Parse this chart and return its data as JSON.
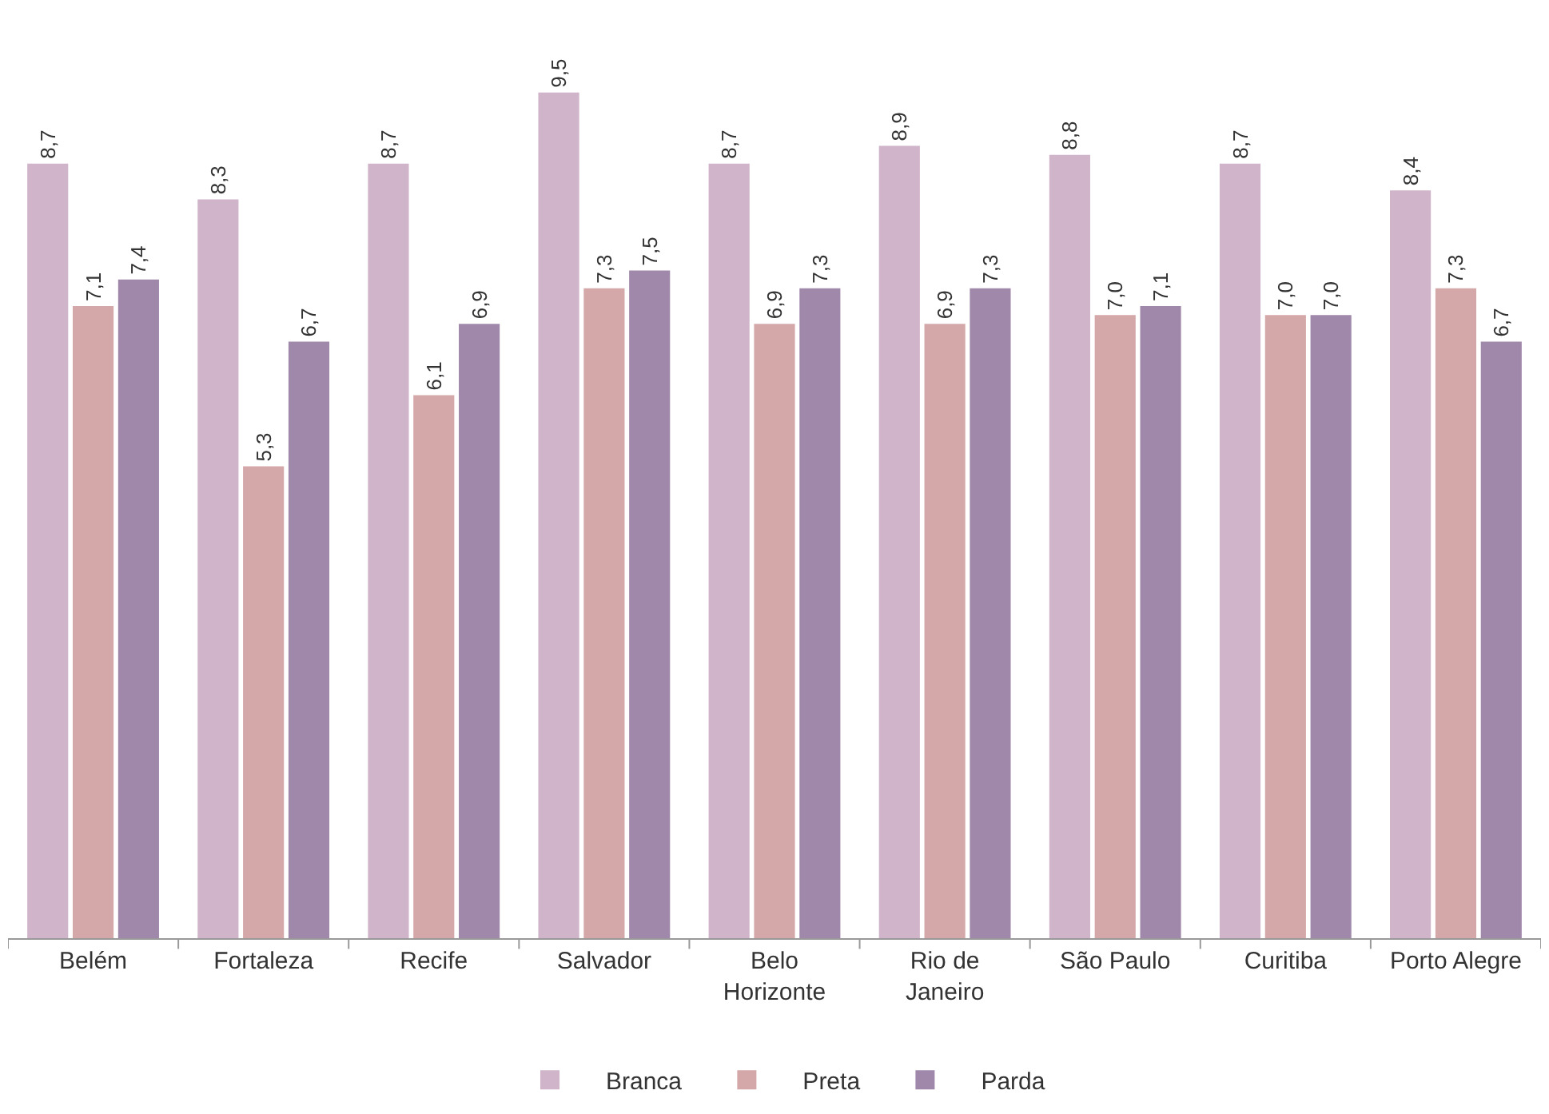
{
  "chart_data": {
    "type": "bar",
    "categories": [
      "Belém",
      "Fortaleza",
      "Recife",
      "Salvador",
      "Belo\nHorizonte",
      "Rio de\nJaneiro",
      "São Paulo",
      "Curitiba",
      "Porto Alegre"
    ],
    "series": [
      {
        "name": "Branca",
        "color": "#d0b4c9",
        "values": [
          8.7,
          8.3,
          8.7,
          9.5,
          8.7,
          8.9,
          8.8,
          8.7,
          8.4
        ],
        "value_labels": [
          "8,7",
          "8,3",
          "8,7",
          "9,5",
          "8,7",
          "8,9",
          "8,8",
          "8,7",
          "8,4"
        ]
      },
      {
        "name": "Preta",
        "color": "#d4a7a8",
        "values": [
          7.1,
          5.3,
          6.1,
          7.3,
          6.9,
          6.9,
          7.0,
          7.0,
          7.3
        ],
        "value_labels": [
          "7,1",
          "5,3",
          "6,1",
          "7,3",
          "6,9",
          "6,9",
          "7,0",
          "7,0",
          "7,3"
        ]
      },
      {
        "name": "Parda",
        "color": "#a088ab",
        "values": [
          7.4,
          6.7,
          6.9,
          7.5,
          7.3,
          7.3,
          7.1,
          7.0,
          6.7
        ],
        "value_labels": [
          "7,4",
          "6,7",
          "6,9",
          "7,5",
          "7,3",
          "7,3",
          "7,1",
          "7,0",
          "6,7"
        ]
      }
    ],
    "legend": "bottom",
    "tick_labels": "x"
  }
}
